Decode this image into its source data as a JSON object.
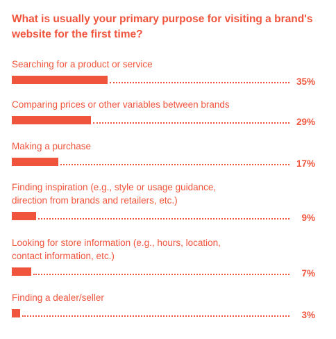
{
  "chart_data": {
    "type": "bar",
    "orientation": "horizontal",
    "title": "What is usually your primary purpose for visiting a brand's website for the first time?",
    "value_suffix": "%",
    "xlim": [
      0,
      100
    ],
    "grid": false,
    "legend": "none",
    "bar_color": "#f0543c",
    "categories": [
      [
        "Searching for a product or service"
      ],
      [
        "Comparing prices or other variables between brands"
      ],
      [
        "Making a purchase"
      ],
      [
        "Finding inspiration (e.g., style or usage guidance,",
        "direction from brands and retailers, etc.)"
      ],
      [
        "Looking for store information (e.g., hours, location,",
        "contact information, etc.)"
      ],
      [
        "Finding a dealer/seller"
      ]
    ],
    "values": [
      35,
      29,
      17,
      9,
      7,
      3
    ],
    "value_labels": [
      "35%",
      "29%",
      "17%",
      "9%",
      "7%",
      "3%"
    ]
  }
}
